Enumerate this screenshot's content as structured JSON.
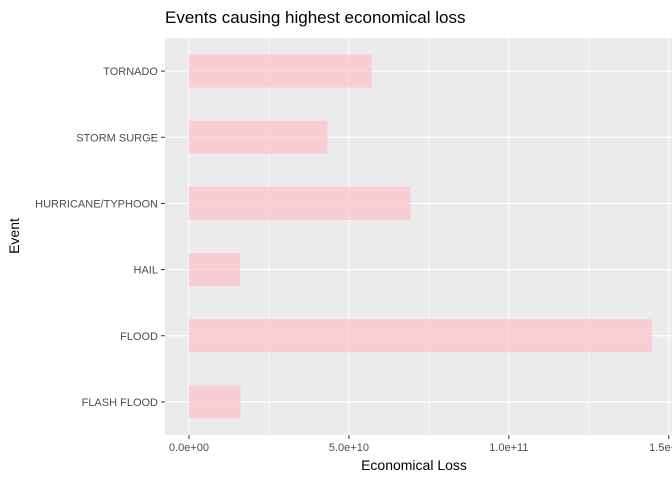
{
  "chart_data": {
    "type": "bar",
    "orientation": "horizontal",
    "title": "Events causing highest economical loss",
    "xlabel": "Economical Loss",
    "ylabel": "Event",
    "categories": [
      "TORNADO",
      "STORM SURGE",
      "HURRICANE/TYPHOON",
      "HAIL",
      "FLOOD",
      "FLASH FLOOD"
    ],
    "values": [
      57000000000,
      43300000000,
      69300000000,
      16000000000,
      144700000000,
      16100000000
    ],
    "xlim": [
      -7500000000,
      151000000000
    ],
    "xticks": [
      0,
      50000000000,
      100000000000,
      150000000000
    ],
    "xtick_labels": [
      "0.0e+00",
      "5.0e+10",
      "1.0e+11",
      "1.5e+11"
    ],
    "bar_color": "#ffc0cb",
    "bar_opacity": 0.7,
    "panel_background": "#ebebeb",
    "grid": true,
    "legend": "none"
  }
}
